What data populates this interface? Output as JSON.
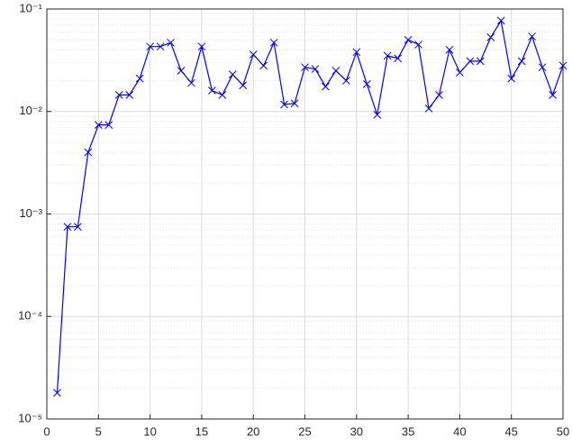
{
  "chart_data": {
    "type": "line",
    "x": [
      1,
      2,
      3,
      4,
      5,
      6,
      7,
      8,
      9,
      10,
      11,
      12,
      13,
      14,
      15,
      16,
      17,
      18,
      19,
      20,
      21,
      22,
      23,
      24,
      25,
      26,
      27,
      28,
      29,
      30,
      31,
      32,
      33,
      34,
      35,
      36,
      37,
      38,
      39,
      40,
      41,
      42,
      43,
      44,
      45,
      46,
      47,
      48,
      49,
      50
    ],
    "series": [
      {
        "color": "#0000ff",
        "marker": "x",
        "values": [
          1.8e-05,
          0.00075,
          0.00075,
          0.004,
          0.0074,
          0.0074,
          0.0145,
          0.0145,
          0.021,
          0.043,
          0.043,
          0.047,
          0.025,
          0.019,
          0.043,
          0.016,
          0.0145,
          0.023,
          0.018,
          0.036,
          0.028,
          0.047,
          0.0117,
          0.012,
          0.027,
          0.026,
          0.0175,
          0.025,
          0.02,
          0.038,
          0.0185,
          0.0093,
          0.035,
          0.033,
          0.05,
          0.045,
          0.0107,
          0.0145,
          0.04,
          0.024,
          0.031,
          0.031,
          0.053,
          0.077,
          0.021,
          0.031,
          0.054,
          0.027,
          0.0145,
          0.028
        ]
      }
    ],
    "xlim": [
      0,
      50
    ],
    "xticks": [
      0,
      5,
      10,
      15,
      20,
      25,
      30,
      35,
      40,
      45,
      50
    ],
    "ylim": [
      1e-05,
      0.1
    ],
    "ylog": true,
    "yticks": [
      {
        "value": 1e-05,
        "label": "10⁻⁵"
      },
      {
        "value": 0.0001,
        "label": "10⁻⁴"
      },
      {
        "value": 0.001,
        "label": "10⁻³"
      },
      {
        "value": 0.01,
        "label": "10⁻²"
      },
      {
        "value": 0.1,
        "label": "10⁻¹"
      }
    ],
    "grid": true,
    "minor_grid": true
  }
}
